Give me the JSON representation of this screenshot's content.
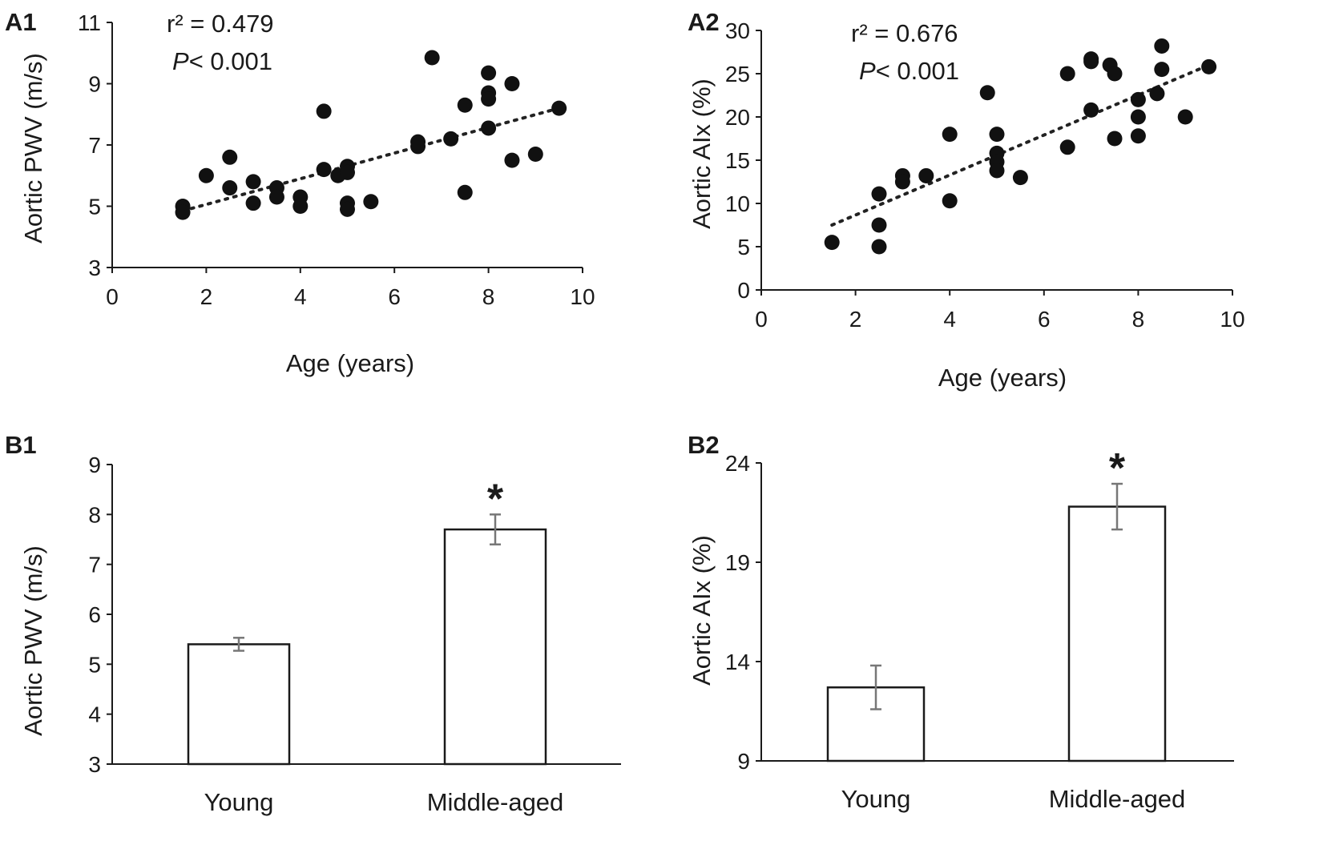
{
  "chart_data": [
    {
      "panel": "A1",
      "type": "scatter",
      "xlabel": "Age (years)",
      "ylabel": "Aortic PWV (m/s)",
      "xlim": [
        0,
        10
      ],
      "ylim": [
        3,
        11
      ],
      "xticks": [
        0,
        2,
        4,
        6,
        8,
        10
      ],
      "yticks": [
        3,
        5,
        7,
        9,
        11
      ],
      "r2": "r² = 0.479",
      "p_prefix": "P",
      "p_value": "< 0.001",
      "trendline": {
        "x": [
          1.5,
          9.5
        ],
        "y": [
          4.85,
          8.2
        ]
      },
      "points": [
        [
          1.5,
          5.0
        ],
        [
          1.5,
          4.8
        ],
        [
          2.0,
          6.0
        ],
        [
          2.5,
          6.6
        ],
        [
          2.5,
          5.6
        ],
        [
          3.0,
          5.8
        ],
        [
          3.0,
          5.1
        ],
        [
          3.5,
          5.6
        ],
        [
          3.5,
          5.3
        ],
        [
          4.0,
          5.3
        ],
        [
          4.0,
          5.0
        ],
        [
          4.5,
          8.1
        ],
        [
          4.5,
          6.2
        ],
        [
          4.8,
          6.0
        ],
        [
          5.0,
          6.3
        ],
        [
          5.0,
          6.1
        ],
        [
          5.0,
          5.1
        ],
        [
          5.0,
          4.9
        ],
        [
          5.5,
          5.15
        ],
        [
          6.5,
          7.1
        ],
        [
          6.5,
          6.95
        ],
        [
          6.8,
          9.85
        ],
        [
          7.2,
          7.2
        ],
        [
          7.5,
          8.3
        ],
        [
          7.5,
          5.45
        ],
        [
          8.0,
          9.35
        ],
        [
          8.0,
          8.7
        ],
        [
          8.0,
          8.5
        ],
        [
          8.0,
          7.55
        ],
        [
          8.5,
          9.0
        ],
        [
          8.5,
          6.5
        ],
        [
          9.0,
          6.7
        ],
        [
          9.5,
          8.2
        ]
      ]
    },
    {
      "panel": "A2",
      "type": "scatter",
      "xlabel": "Age (years)",
      "ylabel": "Aortic AIx (%)",
      "xlim": [
        0,
        10
      ],
      "ylim": [
        0,
        30
      ],
      "xticks": [
        0,
        2,
        4,
        6,
        8,
        10
      ],
      "yticks": [
        0,
        5,
        10,
        15,
        20,
        25,
        30
      ],
      "r2": "r² = 0.676",
      "p_prefix": "P",
      "p_value": "< 0.001",
      "trendline": {
        "x": [
          1.5,
          9.5
        ],
        "y": [
          7.5,
          26.0
        ]
      },
      "points": [
        [
          1.5,
          5.5
        ],
        [
          2.5,
          11.1
        ],
        [
          2.5,
          7.5
        ],
        [
          2.5,
          5.0
        ],
        [
          3.0,
          13.2
        ],
        [
          3.0,
          12.5
        ],
        [
          3.5,
          13.2
        ],
        [
          4.0,
          18.0
        ],
        [
          4.0,
          10.3
        ],
        [
          4.8,
          22.8
        ],
        [
          5.0,
          18.0
        ],
        [
          5.0,
          15.8
        ],
        [
          5.0,
          14.8
        ],
        [
          5.0,
          13.8
        ],
        [
          5.5,
          13.0
        ],
        [
          6.5,
          25.0
        ],
        [
          6.5,
          16.5
        ],
        [
          7.0,
          26.7
        ],
        [
          7.0,
          26.4
        ],
        [
          7.0,
          20.8
        ],
        [
          7.4,
          26.0
        ],
        [
          7.5,
          25.0
        ],
        [
          7.5,
          17.5
        ],
        [
          8.0,
          22.0
        ],
        [
          8.0,
          20.0
        ],
        [
          8.0,
          17.8
        ],
        [
          8.5,
          28.2
        ],
        [
          8.5,
          25.5
        ],
        [
          8.4,
          22.7
        ],
        [
          9.0,
          20.0
        ],
        [
          9.5,
          25.8
        ]
      ]
    },
    {
      "panel": "B1",
      "type": "bar",
      "ylabel": "Aortic PWV (m/s)",
      "ylim": [
        3,
        9
      ],
      "yticks": [
        3,
        4,
        5,
        6,
        7,
        8,
        9
      ],
      "categories": [
        "Young",
        "Middle-aged"
      ],
      "values": [
        5.4,
        7.7
      ],
      "errors": [
        0.13,
        0.3
      ],
      "significance": [
        "",
        "*"
      ]
    },
    {
      "panel": "B2",
      "type": "bar",
      "ylabel": "Aortic AIx (%)",
      "ylim": [
        9,
        24
      ],
      "yticks": [
        9,
        14,
        19,
        24
      ],
      "categories": [
        "Young",
        "Middle-aged"
      ],
      "values": [
        12.7,
        21.8
      ],
      "errors": [
        1.1,
        1.15
      ],
      "significance": [
        "",
        "*"
      ]
    }
  ]
}
